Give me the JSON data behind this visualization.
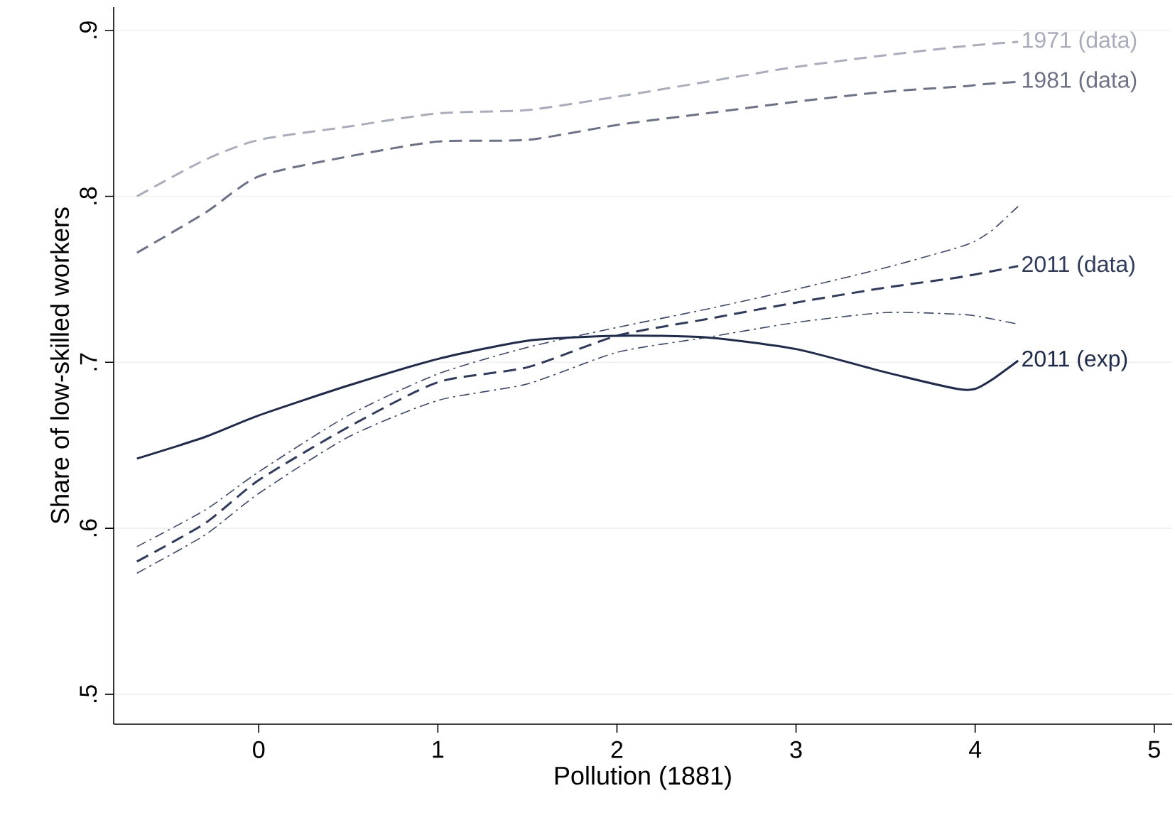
{
  "chart_data": {
    "type": "line",
    "xlabel": "Pollution (1881)",
    "ylabel": "Share of low-skilled workers",
    "x": [
      -0.68,
      -0.3,
      0,
      0.5,
      1,
      1.5,
      2,
      2.5,
      3,
      3.5,
      3.9,
      4,
      4.1,
      4.24
    ],
    "series": [
      {
        "name": "1971 (data)",
        "color": "#a9acbd",
        "line_style": "dashed",
        "values": [
          0.8,
          0.822,
          0.834,
          0.842,
          0.85,
          0.852,
          0.86,
          0.869,
          0.878,
          0.885,
          0.89,
          0.891,
          0.892,
          0.893
        ]
      },
      {
        "name": "1981 (data)",
        "color": "#6b7189",
        "line_style": "dashed",
        "values": [
          0.766,
          0.79,
          0.812,
          0.824,
          0.833,
          0.834,
          0.843,
          0.85,
          0.857,
          0.863,
          0.866,
          0.867,
          0.868,
          0.869
        ]
      },
      {
        "color": "#3b4770",
        "line_style": "dashdot",
        "values": [
          0.573,
          0.596,
          0.621,
          0.655,
          0.677,
          0.687,
          0.706,
          0.715,
          0.724,
          0.73,
          0.729,
          0.728,
          0.726,
          0.723
        ]
      },
      {
        "color": "#3b4770",
        "line_style": "dashdot",
        "values": [
          0.589,
          0.611,
          0.634,
          0.668,
          0.693,
          0.709,
          0.721,
          0.732,
          0.744,
          0.757,
          0.769,
          0.773,
          0.78,
          0.794
        ]
      },
      {
        "name": "2011 (data)",
        "color": "#2e3a5f",
        "line_style": "dashed",
        "values": [
          0.58,
          0.603,
          0.629,
          0.661,
          0.688,
          0.697,
          0.716,
          0.726,
          0.736,
          0.745,
          0.751,
          0.753,
          0.755,
          0.758
        ]
      },
      {
        "name": "2011 (exp)",
        "color": "#1f2a4f",
        "line_style": "solid",
        "values": [
          0.642,
          0.655,
          0.668,
          0.686,
          0.702,
          0.713,
          0.716,
          0.715,
          0.708,
          0.694,
          0.684,
          0.684,
          0.69,
          0.701
        ]
      }
    ],
    "xlim": [
      -0.81,
      5.1
    ],
    "ylim": [
      0.482,
      0.914
    ],
    "xticks": [
      0,
      1,
      2,
      3,
      4,
      5
    ],
    "yticks": [
      {
        "value": 0.5,
        "label": ".5"
      },
      {
        "value": 0.6,
        "label": ".6"
      },
      {
        "value": 0.7,
        "label": ".7"
      },
      {
        "value": 0.8,
        "label": ".8"
      },
      {
        "value": 0.9,
        "label": ".9"
      }
    ],
    "grid": "y",
    "legend": false,
    "marker": "none"
  }
}
